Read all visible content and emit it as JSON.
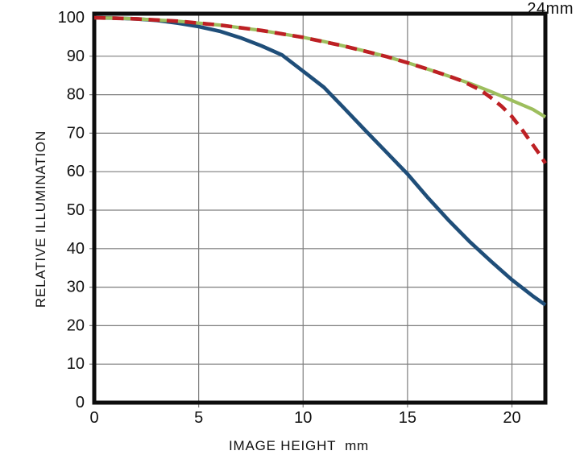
{
  "chart_data": {
    "type": "line",
    "title": "24mm",
    "xlabel": "IMAGE HEIGHT  mm",
    "ylabel": "RELATIVE ILLUMINATION",
    "xlim": [
      0,
      21.6
    ],
    "ylim": [
      0,
      100
    ],
    "x_ticks": [
      0,
      5,
      10,
      15,
      20
    ],
    "y_ticks": [
      0,
      10,
      20,
      30,
      40,
      50,
      60,
      70,
      80,
      90,
      100
    ],
    "grid": true,
    "legend": "none",
    "frame_color": "#0d0d0d",
    "grid_color": "#7d7d7d",
    "series": [
      {
        "name": "blue-solid",
        "color": "#1f4e79",
        "style": "solid",
        "width": 4.6,
        "points": [
          [
            0,
            100
          ],
          [
            1,
            99.9
          ],
          [
            2,
            99.7
          ],
          [
            3,
            99.3
          ],
          [
            4,
            98.6
          ],
          [
            5,
            97.7
          ],
          [
            6,
            96.5
          ],
          [
            7,
            94.8
          ],
          [
            8,
            92.7
          ],
          [
            9,
            90.3
          ],
          [
            10,
            86.1
          ],
          [
            11,
            81.9
          ],
          [
            12,
            76.3
          ],
          [
            13,
            70.6
          ],
          [
            14,
            65.0
          ],
          [
            15,
            59.4
          ],
          [
            16,
            53.1
          ],
          [
            17,
            47.2
          ],
          [
            18,
            41.7
          ],
          [
            19,
            36.7
          ],
          [
            20,
            31.9
          ],
          [
            21,
            27.7
          ],
          [
            21.6,
            25.4
          ]
        ]
      },
      {
        "name": "green-solid",
        "color": "#9dbe5d",
        "style": "solid",
        "width": 4.2,
        "points": [
          [
            0,
            100
          ],
          [
            1,
            99.9
          ],
          [
            2,
            99.7
          ],
          [
            3,
            99.4
          ],
          [
            4,
            99.1
          ],
          [
            5,
            98.6
          ],
          [
            6,
            98.1
          ],
          [
            7,
            97.4
          ],
          [
            8,
            96.7
          ],
          [
            9,
            95.8
          ],
          [
            10,
            94.9
          ],
          [
            11,
            93.8
          ],
          [
            12,
            92.6
          ],
          [
            13,
            91.3
          ],
          [
            14,
            89.9
          ],
          [
            15,
            88.3
          ],
          [
            16,
            86.6
          ],
          [
            17,
            84.8
          ],
          [
            18,
            82.9
          ],
          [
            19,
            80.8
          ],
          [
            20,
            78.5
          ],
          [
            21,
            76.2
          ],
          [
            21.6,
            74.2
          ]
        ]
      },
      {
        "name": "red-dashed",
        "color": "#bd2024",
        "style": "dashed",
        "width": 4.6,
        "points": [
          [
            0,
            100
          ],
          [
            2,
            99.7
          ],
          [
            4,
            99.1
          ],
          [
            6,
            98.1
          ],
          [
            8,
            96.7
          ],
          [
            10,
            94.9
          ],
          [
            12,
            92.6
          ],
          [
            14,
            89.9
          ],
          [
            15,
            88.3
          ],
          [
            16,
            86.6
          ],
          [
            17,
            84.8
          ],
          [
            17.5,
            83.8
          ],
          [
            18,
            82.5
          ],
          [
            18.5,
            81.2
          ],
          [
            19,
            79.2
          ],
          [
            19.5,
            77.0
          ],
          [
            20,
            74.3
          ],
          [
            20.5,
            70.8
          ],
          [
            21,
            67.0
          ],
          [
            21.3,
            64.7
          ],
          [
            21.6,
            62.2
          ]
        ]
      }
    ]
  }
}
